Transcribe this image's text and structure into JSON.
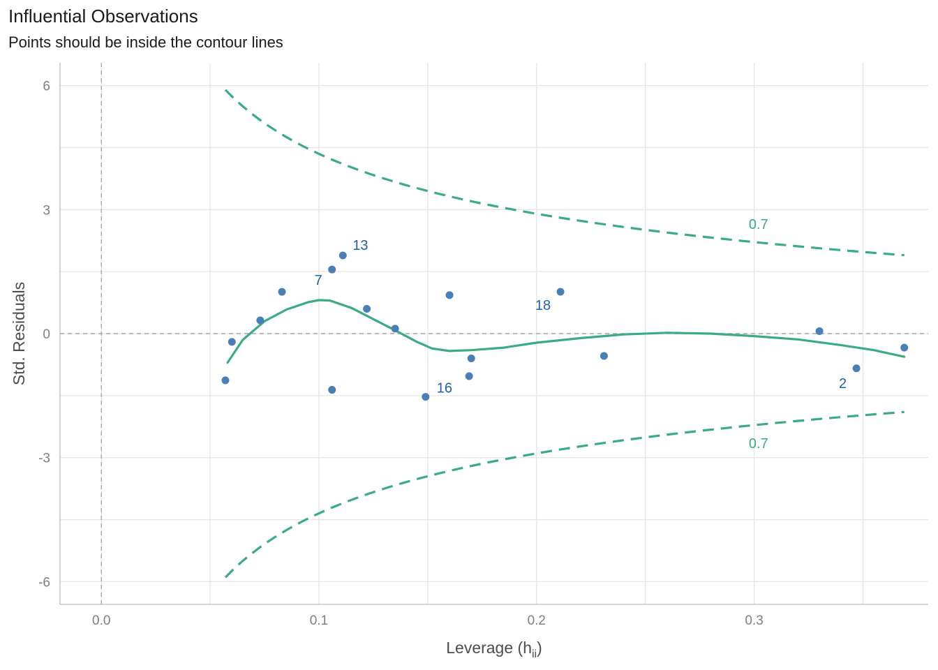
{
  "chart_data": {
    "type": "scatter",
    "title": "Influential Observations",
    "subtitle": "Points should be inside the contour lines",
    "xlabel": "Leverage (h",
    "xlabel_sub": "ii",
    "xlabel_close": ")",
    "ylabel": "Std. Residuals",
    "xlim": [
      -0.019,
      0.38
    ],
    "ylim": [
      -6.55,
      6.55
    ],
    "x_ticks": [
      0.0,
      0.1,
      0.2,
      0.3
    ],
    "x_tick_labels": [
      "0.0",
      "0.1",
      "0.2",
      "0.3"
    ],
    "y_ticks": [
      -6,
      -3,
      0,
      3,
      6
    ],
    "y_tick_labels": [
      "-6",
      "-3",
      "0",
      "3",
      "6"
    ],
    "grid": true,
    "colors": {
      "points": "#4a7fb5",
      "point_labels": "#1f63a6",
      "curve": "#3aab82",
      "reference": "#a6a6a6"
    },
    "points": [
      {
        "x": 0.057,
        "y": -1.13
      },
      {
        "x": 0.06,
        "y": -0.2
      },
      {
        "x": 0.073,
        "y": 0.32
      },
      {
        "x": 0.083,
        "y": 1.01
      },
      {
        "x": 0.106,
        "y": -1.36
      },
      {
        "x": 0.106,
        "y": 1.55,
        "label": "7"
      },
      {
        "x": 0.111,
        "y": 1.89,
        "label": "13"
      },
      {
        "x": 0.122,
        "y": 0.6
      },
      {
        "x": 0.135,
        "y": 0.12
      },
      {
        "x": 0.149,
        "y": -1.53,
        "label": "16"
      },
      {
        "x": 0.16,
        "y": 0.93
      },
      {
        "x": 0.169,
        "y": -1.03
      },
      {
        "x": 0.17,
        "y": -0.6
      },
      {
        "x": 0.211,
        "y": 1.01,
        "label": "18"
      },
      {
        "x": 0.231,
        "y": -0.54
      },
      {
        "x": 0.33,
        "y": 0.06
      },
      {
        "x": 0.347,
        "y": -0.84,
        "label": "2"
      },
      {
        "x": 0.369,
        "y": -0.34
      }
    ],
    "loess_curve": [
      {
        "x": 0.058,
        "y": -0.7
      },
      {
        "x": 0.065,
        "y": -0.15
      },
      {
        "x": 0.075,
        "y": 0.3
      },
      {
        "x": 0.085,
        "y": 0.58
      },
      {
        "x": 0.095,
        "y": 0.76
      },
      {
        "x": 0.1,
        "y": 0.81
      },
      {
        "x": 0.105,
        "y": 0.8
      },
      {
        "x": 0.115,
        "y": 0.62
      },
      {
        "x": 0.125,
        "y": 0.35
      },
      {
        "x": 0.135,
        "y": 0.08
      },
      {
        "x": 0.145,
        "y": -0.2
      },
      {
        "x": 0.152,
        "y": -0.36
      },
      {
        "x": 0.16,
        "y": -0.42
      },
      {
        "x": 0.17,
        "y": -0.4
      },
      {
        "x": 0.185,
        "y": -0.34
      },
      {
        "x": 0.2,
        "y": -0.22
      },
      {
        "x": 0.22,
        "y": -0.11
      },
      {
        "x": 0.24,
        "y": -0.02
      },
      {
        "x": 0.26,
        "y": 0.02
      },
      {
        "x": 0.28,
        "y": 0.0
      },
      {
        "x": 0.3,
        "y": -0.06
      },
      {
        "x": 0.32,
        "y": -0.14
      },
      {
        "x": 0.34,
        "y": -0.28
      },
      {
        "x": 0.355,
        "y": -0.4
      },
      {
        "x": 0.369,
        "y": -0.56
      }
    ],
    "contours": [
      {
        "label": "0.7",
        "label_at": {
          "x": 0.302,
          "y": 2.65
        }
      },
      {
        "label": "0.7",
        "label_at": {
          "x": 0.302,
          "y": -2.65
        }
      }
    ]
  }
}
